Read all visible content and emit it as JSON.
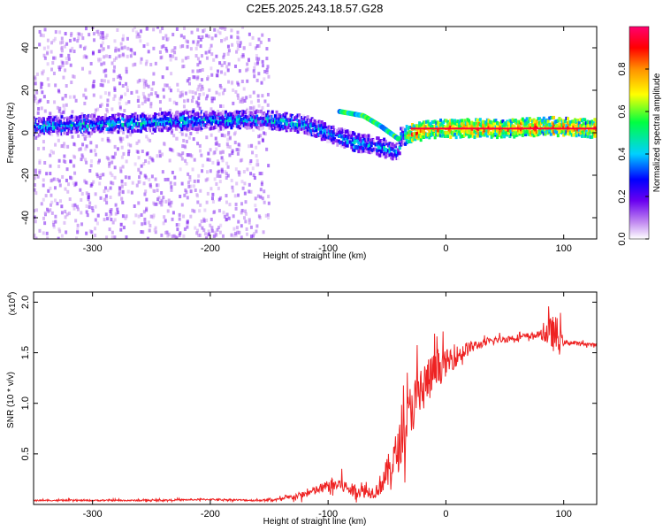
{
  "chart_data": [
    {
      "type": "heatmap",
      "title": "C2E5.2025.243.18.57.G28",
      "xlabel": "Height of straight line (km)",
      "ylabel": "Frequency (Hz)",
      "xlim": [
        -350,
        128
      ],
      "ylim": [
        -50,
        50
      ],
      "xticks": [
        -300,
        -200,
        -100,
        0,
        100
      ],
      "yticks": [
        -40,
        -20,
        0,
        20,
        40
      ],
      "colorbar": {
        "label": "Normalized spectral amplitude",
        "range": [
          0,
          1
        ],
        "ticks": [
          0.0,
          0.2,
          0.4,
          0.6,
          0.8
        ],
        "colors": [
          "#ffffff",
          "#c088f0",
          "#6a00f0",
          "#0000ff",
          "#00d0ff",
          "#00ff40",
          "#ffff00",
          "#ff9000",
          "#ff0000",
          "#ff0070"
        ]
      },
      "ridge": {
        "description": "dominant spectral line",
        "points": [
          {
            "x": -350,
            "y": 3
          },
          {
            "x": -300,
            "y": 4
          },
          {
            "x": -250,
            "y": 5
          },
          {
            "x": -200,
            "y": 6
          },
          {
            "x": -150,
            "y": 6
          },
          {
            "x": -120,
            "y": 4
          },
          {
            "x": -100,
            "y": 0
          },
          {
            "x": -80,
            "y": -4
          },
          {
            "x": -60,
            "y": -6
          },
          {
            "x": -40,
            "y": -9
          },
          {
            "x": -38,
            "y": -2
          },
          {
            "x": -20,
            "y": 1
          },
          {
            "x": 0,
            "y": 2
          },
          {
            "x": 50,
            "y": 2
          },
          {
            "x": 90,
            "y": 3
          },
          {
            "x": 128,
            "y": 2
          }
        ],
        "upper_branch": [
          {
            "x": -90,
            "y": 10
          },
          {
            "x": -70,
            "y": 8
          },
          {
            "x": -55,
            "y": 3
          },
          {
            "x": -40,
            "y": -3
          }
        ]
      },
      "scatter_region": {
        "xmin": -350,
        "xmax": -150,
        "ymin": -50,
        "ymax": 50,
        "amplitude": 0.15
      }
    },
    {
      "type": "line",
      "title": "",
      "xlabel": "Height of straight line (km)",
      "ylabel": "SNR (10 * v/v)",
      "y_multiplier": "(x10",
      "y_multiplier_exp": "4",
      "y_multiplier_close": ")",
      "xlim": [
        -350,
        128
      ],
      "ylim": [
        0,
        2.1
      ],
      "xticks": [
        -300,
        -200,
        -100,
        0,
        100
      ],
      "yticks": [
        0.5,
        1.0,
        1.5,
        2.0
      ],
      "ytick_labels": [
        "0.5",
        "1.0",
        "1.5",
        "2.0"
      ],
      "series": [
        {
          "name": "SNR",
          "color": "#ee2222",
          "envelope": [
            {
              "x": -350,
              "y": 0.04
            },
            {
              "x": -250,
              "y": 0.04
            },
            {
              "x": -200,
              "y": 0.05
            },
            {
              "x": -160,
              "y": 0.04
            },
            {
              "x": -140,
              "y": 0.05
            },
            {
              "x": -120,
              "y": 0.1
            },
            {
              "x": -100,
              "y": 0.18
            },
            {
              "x": -90,
              "y": 0.2
            },
            {
              "x": -80,
              "y": 0.14
            },
            {
              "x": -60,
              "y": 0.12
            },
            {
              "x": -50,
              "y": 0.3
            },
            {
              "x": -40,
              "y": 0.55
            },
            {
              "x": -30,
              "y": 0.95
            },
            {
              "x": -20,
              "y": 1.15
            },
            {
              "x": -10,
              "y": 1.3
            },
            {
              "x": 0,
              "y": 1.4
            },
            {
              "x": 20,
              "y": 1.55
            },
            {
              "x": 40,
              "y": 1.62
            },
            {
              "x": 60,
              "y": 1.65
            },
            {
              "x": 80,
              "y": 1.68
            },
            {
              "x": 90,
              "y": 1.7
            },
            {
              "x": 95,
              "y": 1.65
            },
            {
              "x": 100,
              "y": 1.6
            },
            {
              "x": 128,
              "y": 1.58
            }
          ],
          "noise": [
            {
              "x": -350,
              "a": 0.01
            },
            {
              "x": -150,
              "a": 0.015
            },
            {
              "x": -120,
              "a": 0.06
            },
            {
              "x": -90,
              "a": 0.12
            },
            {
              "x": -60,
              "a": 0.1
            },
            {
              "x": -45,
              "a": 0.35
            },
            {
              "x": -20,
              "a": 0.45
            },
            {
              "x": 0,
              "a": 0.22
            },
            {
              "x": 30,
              "a": 0.06
            },
            {
              "x": 80,
              "a": 0.05
            },
            {
              "x": 85,
              "a": 0.2
            },
            {
              "x": 95,
              "a": 0.35
            },
            {
              "x": 100,
              "a": 0.04
            },
            {
              "x": 128,
              "a": 0.02
            }
          ]
        }
      ]
    }
  ]
}
